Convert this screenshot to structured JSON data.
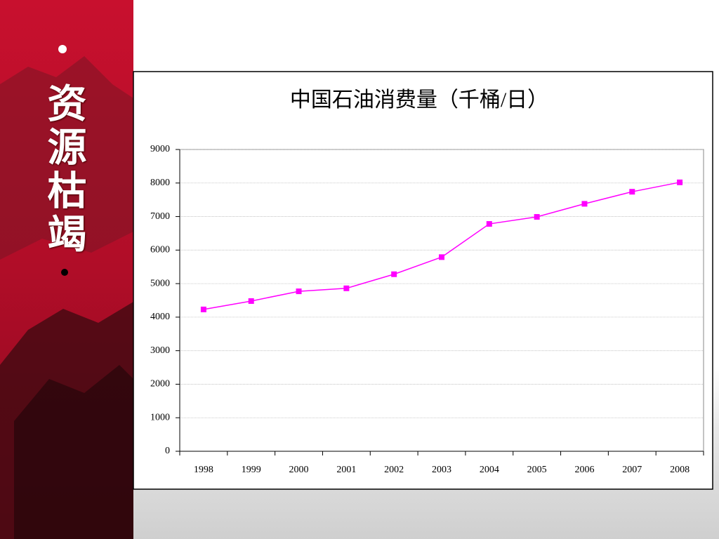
{
  "sidebar": {
    "title": "资源枯竭"
  },
  "chart_data": {
    "type": "line",
    "title": "中国石油消费量（千桶/日）",
    "categories": [
      "1998",
      "1999",
      "2000",
      "2001",
      "2002",
      "2003",
      "2004",
      "2005",
      "2006",
      "2007",
      "2008"
    ],
    "series": [
      {
        "color": "#ff00ff",
        "values": [
          4230,
          4480,
          4770,
          4860,
          5280,
          5790,
          6780,
          6990,
          7380,
          7740,
          8020
        ]
      }
    ],
    "ylim": [
      0,
      9000
    ],
    "yticks": [
      0,
      1000,
      2000,
      3000,
      4000,
      5000,
      6000,
      7000,
      8000,
      9000
    ],
    "grid": true
  }
}
